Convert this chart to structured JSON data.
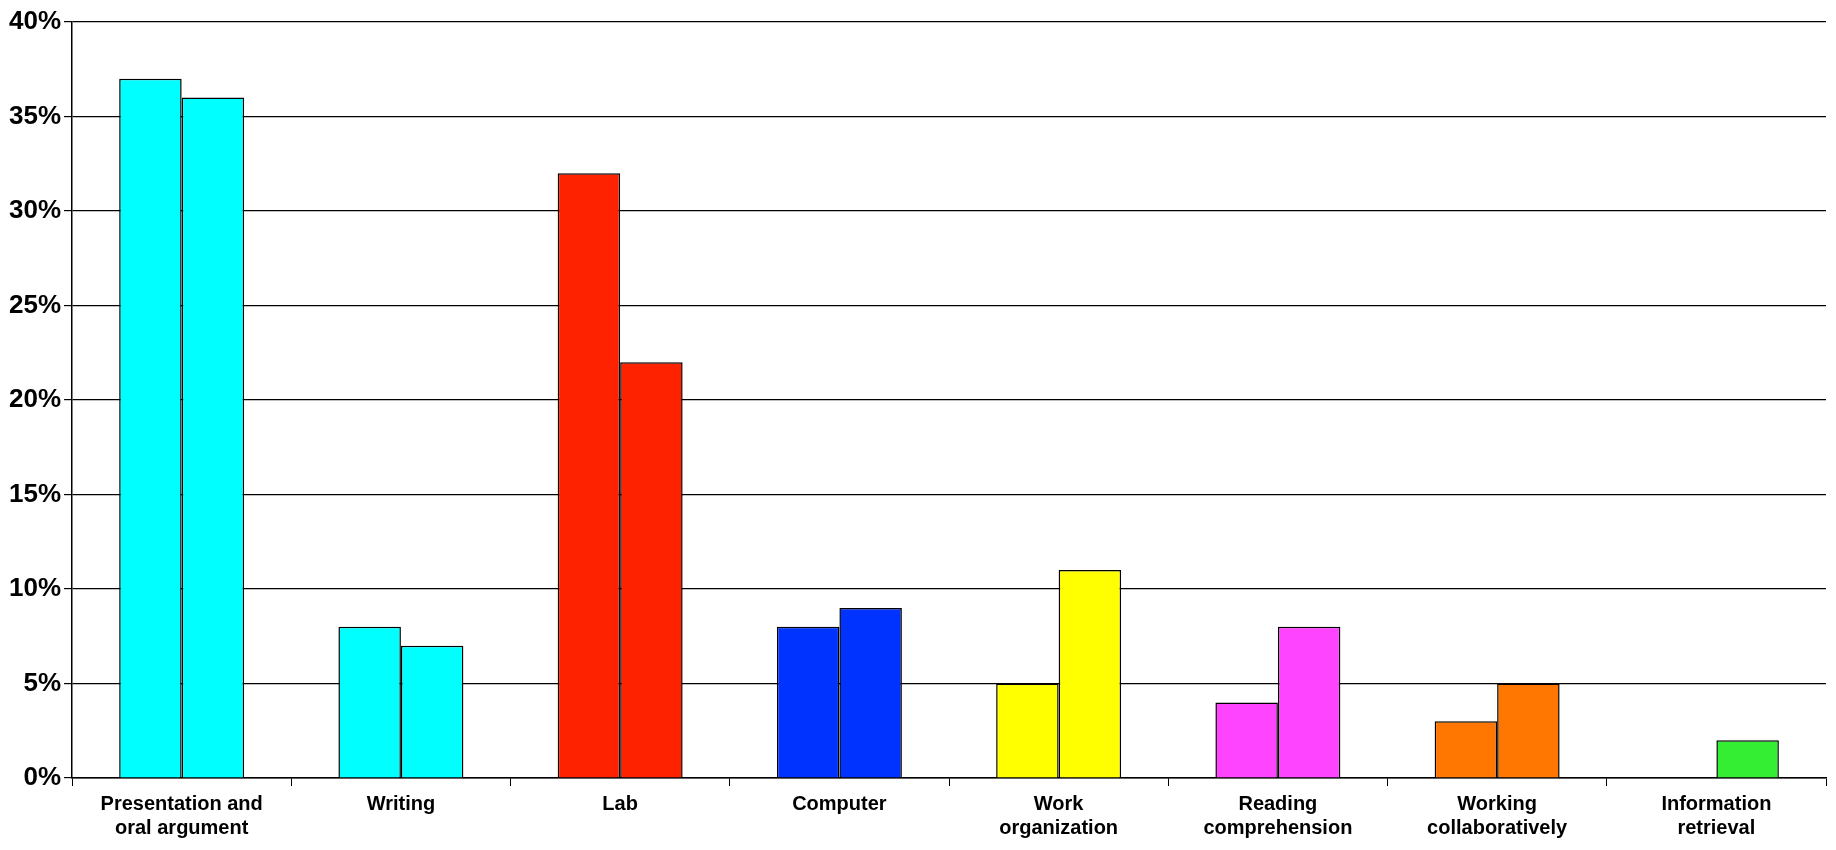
{
  "chart_data": {
    "type": "bar",
    "categories": [
      "Presentation and oral argument",
      "Writing",
      "Lab",
      "Computer",
      "Work organization",
      "Reading comprehension",
      "Working collaboratively",
      "Information retrieval"
    ],
    "series": [
      {
        "colors": [
          "#00ffff",
          "#00ffff",
          "#ff2200",
          "#0033ff",
          "#ffff00",
          "#ff44ff",
          "#ff7700",
          "#33ee33"
        ],
        "values": [
          37,
          8,
          32,
          8,
          5,
          4,
          3,
          null
        ]
      },
      {
        "colors": [
          "#00ffff",
          "#00ffff",
          "#ff2200",
          "#0033ff",
          "#ffff00",
          "#ff44ff",
          "#ff7700",
          "#33ee33"
        ],
        "values": [
          36,
          7,
          22,
          9,
          11,
          8,
          5,
          2
        ]
      }
    ],
    "ylim": [
      0,
      40
    ],
    "yticks": [
      {
        "value": 0,
        "label": "0%"
      },
      {
        "value": 5,
        "label": "5%"
      },
      {
        "value": 10,
        "label": "10%"
      },
      {
        "value": 15,
        "label": "15%"
      },
      {
        "value": 20,
        "label": "20%"
      },
      {
        "value": 25,
        "label": "25%"
      },
      {
        "value": 30,
        "label": "30%"
      },
      {
        "value": 35,
        "label": "35%"
      },
      {
        "value": 40,
        "label": "40%"
      }
    ],
    "grid": "y",
    "legend": false
  }
}
